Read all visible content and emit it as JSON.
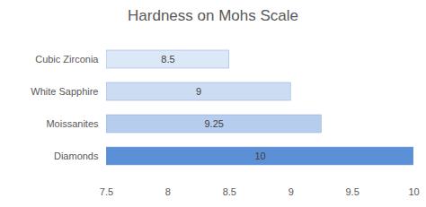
{
  "chart_data": {
    "type": "bar",
    "title": "Hardness on Mohs Scale",
    "orientation": "horizontal",
    "categories": [
      "Cubic Zirconia",
      "White Sapphire",
      "Moissanites",
      "Diamonds"
    ],
    "values": [
      8.5,
      9,
      9.25,
      10
    ],
    "colors": [
      "#dce8f7",
      "#cbdcf3",
      "#b6cdee",
      "#5b8fd6"
    ],
    "xlim": [
      7.5,
      10
    ],
    "xticks": [
      7.5,
      8,
      8.5,
      9,
      9.5,
      10
    ],
    "grid": false,
    "data_labels": true
  }
}
